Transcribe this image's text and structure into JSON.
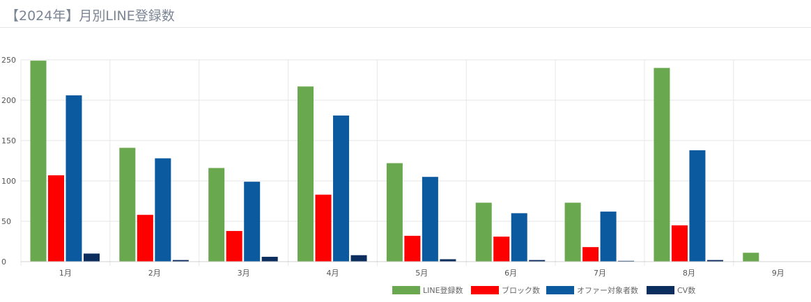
{
  "title": "【2024年】月別LINE登録数",
  "chart_data": {
    "type": "bar",
    "categories": [
      "1月",
      "2月",
      "3月",
      "4月",
      "5月",
      "6月",
      "7月",
      "8月",
      "9月"
    ],
    "series": [
      {
        "name": "LINE登録数",
        "color": "#6aa84f",
        "values": [
          249,
          141,
          116,
          217,
          122,
          73,
          73,
          240,
          11
        ]
      },
      {
        "name": "ブロック数",
        "color": "#ff0000",
        "values": [
          107,
          58,
          38,
          83,
          32,
          31,
          18,
          45,
          0
        ]
      },
      {
        "name": "オファー対象者数",
        "color": "#0b5aa0",
        "values": [
          206,
          128,
          99,
          181,
          105,
          60,
          62,
          138,
          0
        ]
      },
      {
        "name": "CV数",
        "color": "#0b2e5e",
        "values": [
          10,
          2,
          6,
          8,
          3,
          2,
          1,
          2,
          0
        ]
      }
    ],
    "yticks": [
      "0",
      "50",
      "100",
      "150",
      "200",
      "250"
    ],
    "ylim": [
      0,
      250
    ],
    "grid": true,
    "legend": "bottom-right"
  }
}
